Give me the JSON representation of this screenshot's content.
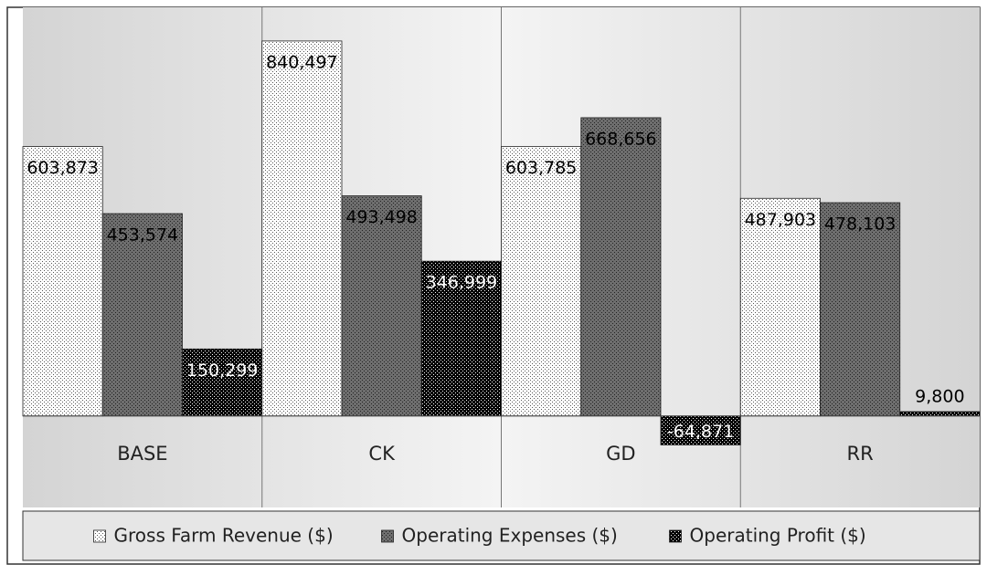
{
  "chart_data": {
    "type": "bar",
    "categories": [
      "BASE",
      "CK",
      "GD",
      "RR"
    ],
    "series": [
      {
        "name": "Gross Farm Revenue ($)",
        "color": "#ffffff",
        "values": [
          603873,
          840497,
          603785,
          487903
        ],
        "value_labels": [
          "603,873",
          "840,497",
          "603,785",
          "487,903"
        ]
      },
      {
        "name": "Operating Expenses ($)",
        "color": "#6e6e6e",
        "values": [
          453574,
          493498,
          668656,
          478103
        ],
        "value_labels": [
          "453,574",
          "493,498",
          "668,656",
          "478,103"
        ]
      },
      {
        "name": "Operating Profit ($)",
        "color": "#000000",
        "values": [
          150299,
          346999,
          -64871,
          9800
        ],
        "value_labels": [
          "150,299",
          "346,999",
          "-64,871",
          "9,800"
        ]
      }
    ],
    "ylim": [
      -70000,
      916000
    ],
    "legend": "bottom"
  }
}
